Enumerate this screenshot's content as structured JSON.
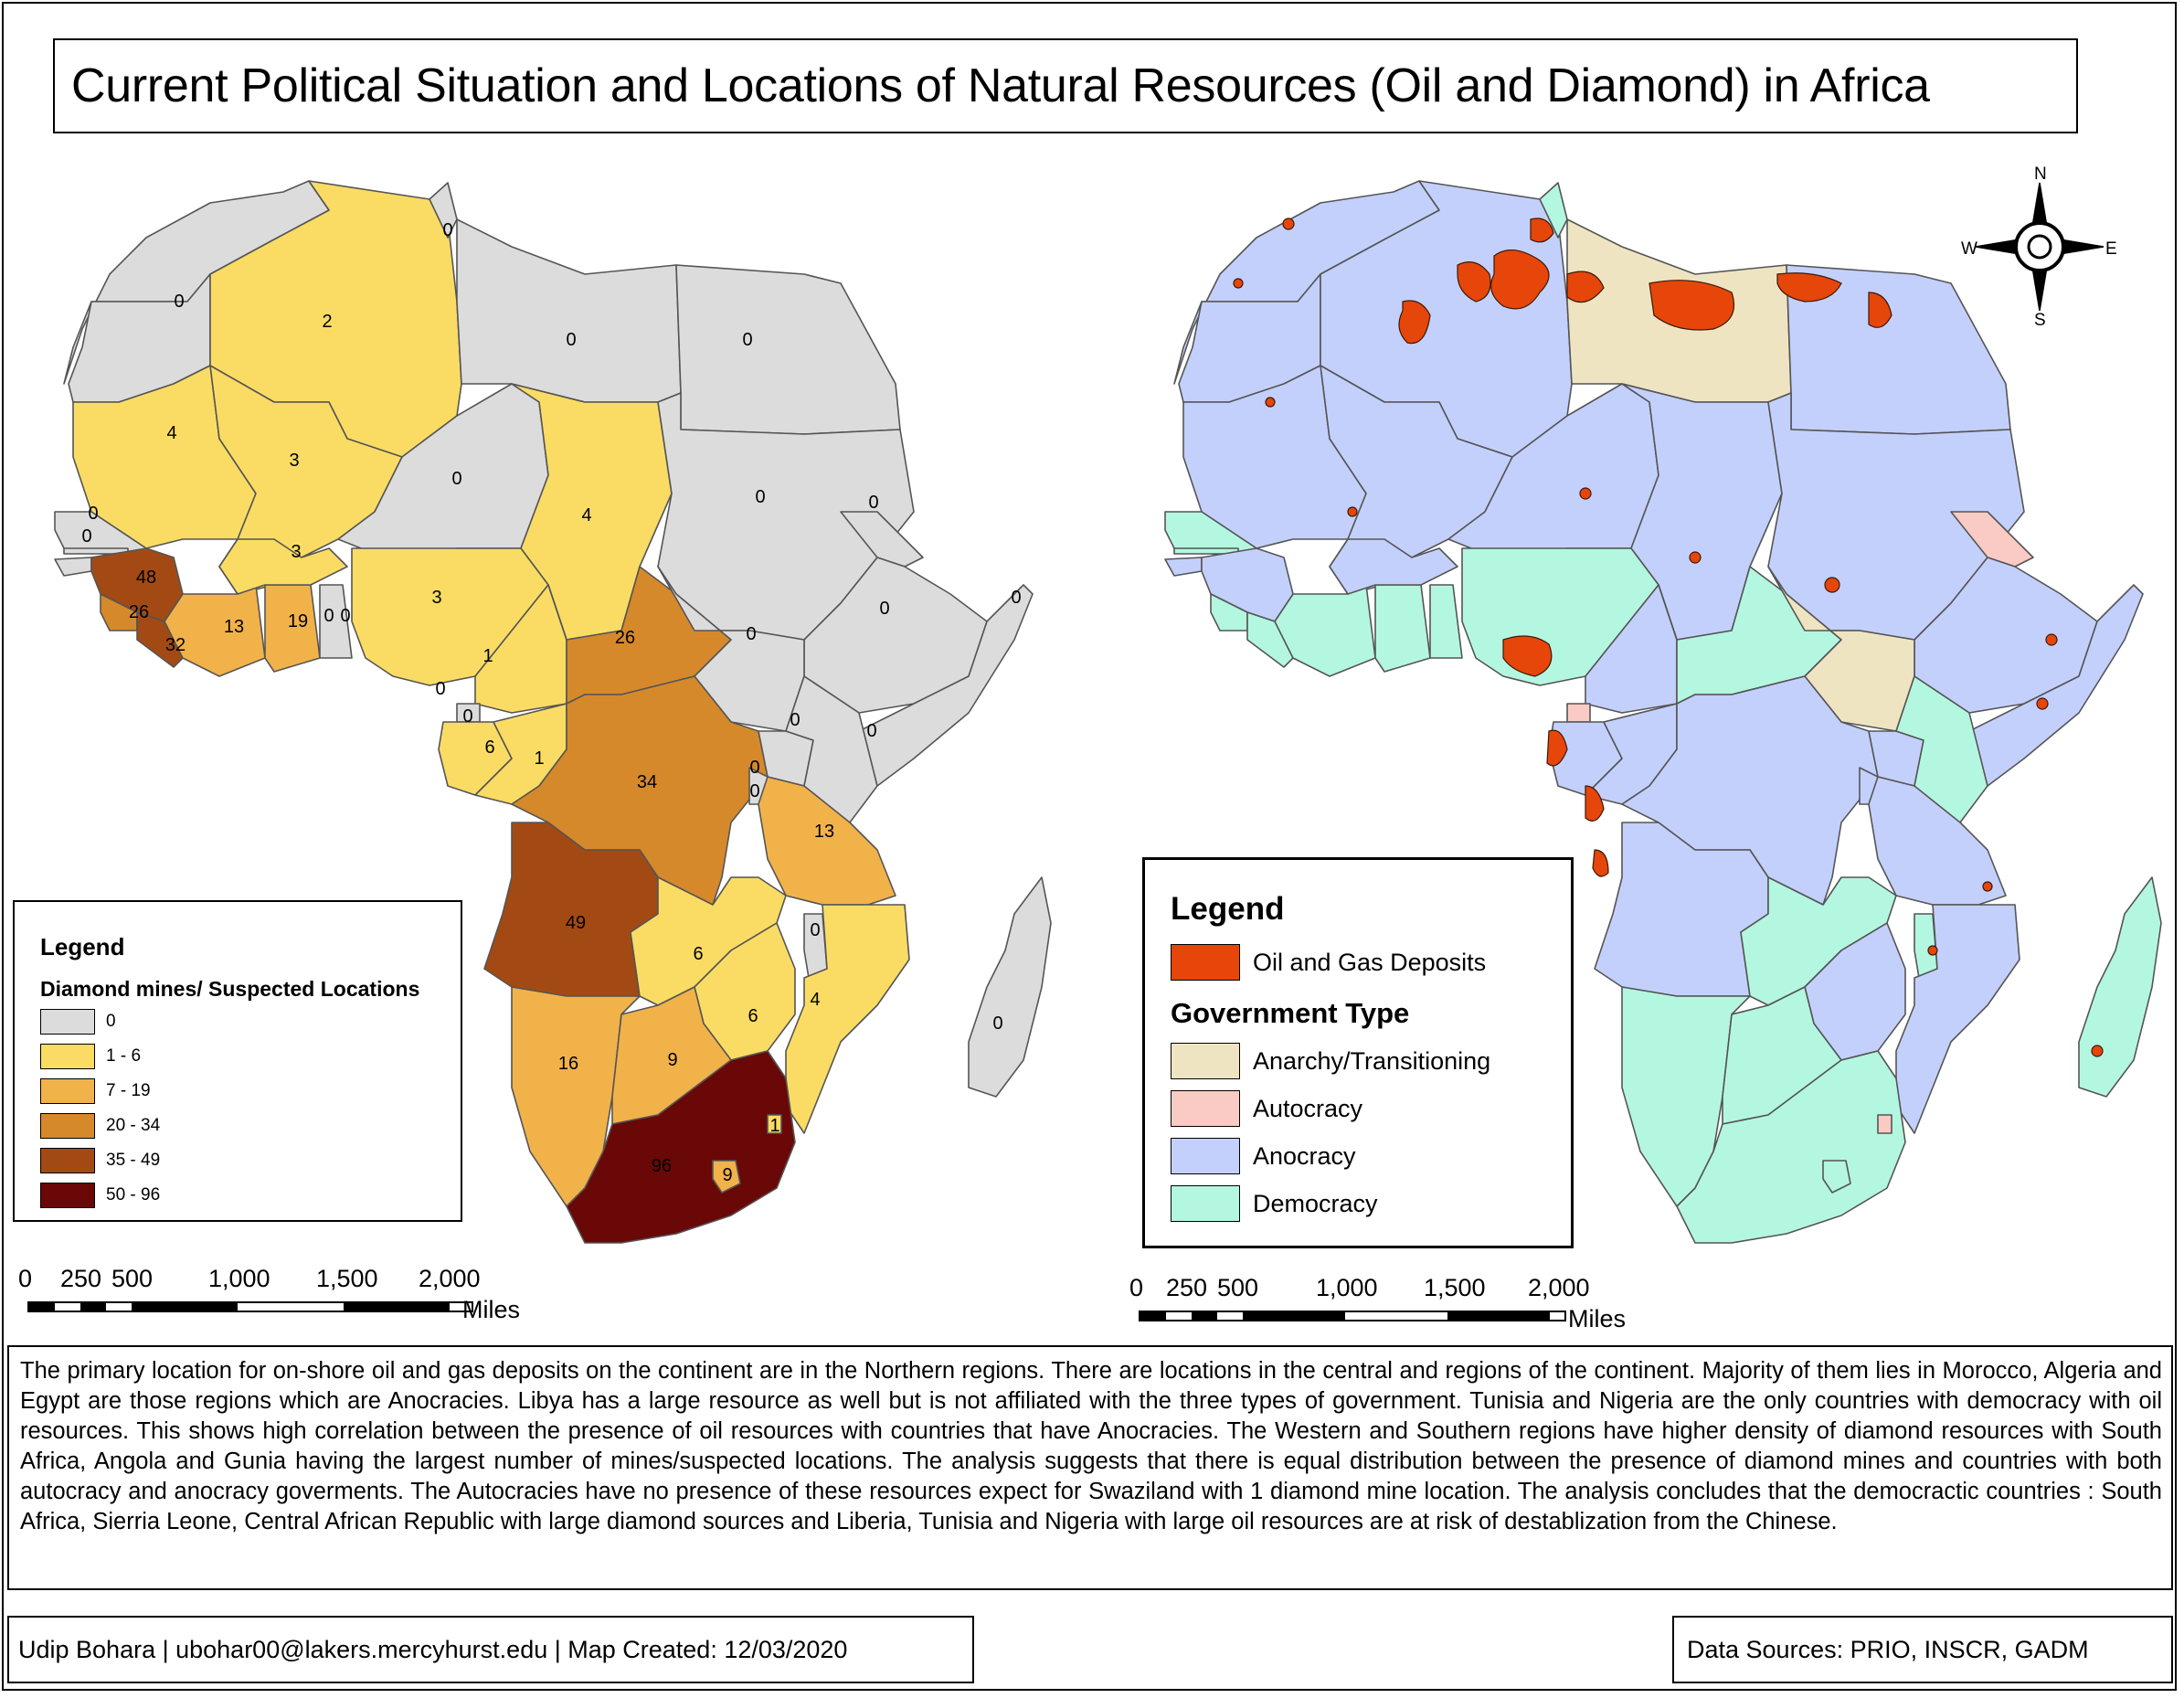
{
  "title": "Current Political Situation and Locations of Natural Resources (Oil and Diamond) in Africa",
  "diamond_map": {
    "legend_title": "Legend",
    "legend_subtitle": "Diamond mines/ Suspected Locations",
    "classes": [
      {
        "label": "0",
        "color": "#dcdcdc"
      },
      {
        "label": "1 - 6",
        "color": "#fadc64"
      },
      {
        "label": "7 - 19",
        "color": "#f2b24a"
      },
      {
        "label": "20 - 34",
        "color": "#d6892a"
      },
      {
        "label": "35 - 49",
        "color": "#a34a14"
      },
      {
        "label": "50 - 96",
        "color": "#6a0707"
      }
    ],
    "country_values": [
      "0",
      "2",
      "0",
      "0",
      "0",
      "4",
      "3",
      "0",
      "0",
      "3",
      "4",
      "0",
      "0",
      "0",
      "0",
      "0",
      "48",
      "26",
      "32",
      "13",
      "19",
      "3",
      "1",
      "26",
      "0",
      "0",
      "0",
      "0",
      "0",
      "0",
      "0",
      "6",
      "1",
      "34",
      "0",
      "0",
      "13",
      "49",
      "0",
      "6",
      "4",
      "6",
      "16",
      "9",
      "96",
      "1",
      "9",
      "0",
      "0",
      "0",
      "0",
      "0"
    ]
  },
  "government_map": {
    "legend_title": "Legend",
    "oil_label": "Oil and Gas Deposits",
    "oil_color": "#e6460a",
    "government_title": "Government Type",
    "types": [
      {
        "label": "Anarchy/Transitioning",
        "color": "#efe4c2"
      },
      {
        "label": "Autocracy",
        "color": "#f9cbc4"
      },
      {
        "label": "Anocracy",
        "color": "#c4d0fc"
      },
      {
        "label": "Democracy",
        "color": "#b4f7e0"
      }
    ]
  },
  "compass": {
    "n": "N",
    "s": "S",
    "e": "E",
    "w": "W"
  },
  "scale_bar": {
    "ticks": [
      "0",
      "250",
      "500",
      "1,000",
      "1,500",
      "2,000"
    ],
    "units": "Miles"
  },
  "description": "The primary location for on-shore oil and gas deposits on the continent are in the Northern regions. There are locations in the central and regions of the continent. Majority of them lies in Morocco, Algeria and Egypt are those regions which are Anocracies. Libya has a large resource as well but is not affiliated with the three types of government. Tunisia and Nigeria are the only countries with democracy with oil resources. This shows high correlation between the presence of oil resources with countries that have Anocracies. The Western and Southern regions have higher density of diamond resources with South Africa, Angola and Gunia having the largest number of mines/suspected locations. The analysis suggests that there is equal distribution between the presence of diamond mines and countries with both autocracy and anocracy goverments. The Autocracies have no presence of these resources expect for Swaziland with 1 diamond mine location. The analysis concludes that the democractic countries : South Africa, Sierria Leone, Central African Republic with large diamond sources and Liberia, Tunisia and Nigeria with large oil resources are at risk of destablization from the Chinese.",
  "credit": "Udip Bohara | ubohar00@lakers.mercyhurst.edu | Map Created: 12/03/2020",
  "sources": "Data Sources: PRIO, INSCR, GADM"
}
